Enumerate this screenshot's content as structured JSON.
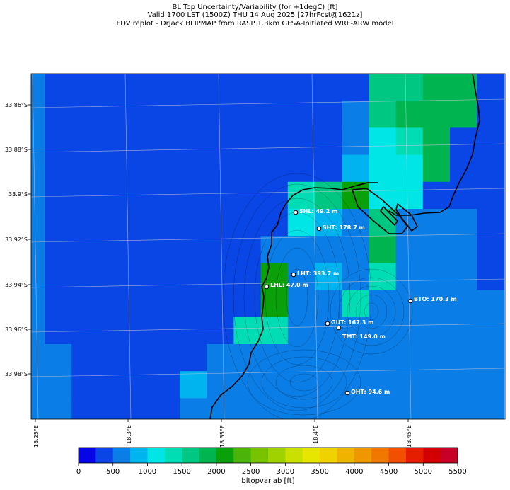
{
  "header": {
    "line1": "BL Top Uncertainty/Variability (for +1degC) [ft]",
    "line2": "Valid 1700 LST (1500Z) THU 14 Aug 2025 [27hrFcst@1621z]",
    "line3": "FDV replot - DrJack BLIPMAP from RASP 1.3km GFSA-Initiated WRF-ARW model"
  },
  "axes": {
    "lat_ticks": [
      "33.86°S",
      "33.88°S",
      "33.9°S",
      "33.92°S",
      "33.94°S",
      "33.96°S",
      "33.98°S"
    ],
    "lon_ticks": [
      "18.25°E",
      "18.3°E",
      "18.35°E",
      "18.4°E",
      "18.45°E"
    ]
  },
  "stations": [
    {
      "label": "SHL: 49.2 m"
    },
    {
      "label": "SHT: 178.7 m"
    },
    {
      "label": "LHT: 393.7 m"
    },
    {
      "label": "LHL: 47.0 m"
    },
    {
      "label": "BTO: 170.3 m"
    },
    {
      "label": "GUT: 167.3 m"
    },
    {
      "label": "TMT: 149.0 m"
    },
    {
      "label": "OHT: 94.6 m"
    }
  ],
  "colorbar": {
    "title": "bltopvariab [ft]",
    "ticks": [
      "0",
      "500",
      "1000",
      "1500",
      "2000",
      "2500",
      "3000",
      "3500",
      "4000",
      "4500",
      "5000",
      "5500"
    ],
    "colors": [
      "#0505e6",
      "#0a46e6",
      "#0a7de6",
      "#00b4f0",
      "#00e6e6",
      "#00dcb4",
      "#00c882",
      "#00b450",
      "#0aa00a",
      "#4bb40a",
      "#78c300",
      "#a0d200",
      "#c8e100",
      "#e6e600",
      "#f0d200",
      "#f0b400",
      "#f09600",
      "#f07800",
      "#f05000",
      "#e61e00",
      "#d20000",
      "#c80028"
    ]
  },
  "chart_data": {
    "type": "heatmap",
    "variable": "bltopvariab",
    "units": "ft",
    "lon_range": [
      18.24,
      18.52
    ],
    "lat_range": [
      -34.0,
      -33.85
    ],
    "grid_cols": 18,
    "grid_rows": 13,
    "bins_ft": 250,
    "grid_values_ft": [
      [
        500,
        250,
        250,
        250,
        250,
        250,
        250,
        250,
        250,
        250,
        250,
        250,
        250,
        1500,
        1500,
        1750,
        1750,
        250
      ],
      [
        500,
        250,
        250,
        250,
        250,
        250,
        250,
        250,
        250,
        250,
        250,
        250,
        500,
        1500,
        1750,
        1750,
        1750,
        250
      ],
      [
        500,
        250,
        250,
        250,
        250,
        250,
        250,
        250,
        250,
        250,
        250,
        250,
        500,
        1000,
        1250,
        1750,
        250,
        250
      ],
      [
        500,
        250,
        250,
        250,
        250,
        250,
        250,
        250,
        250,
        250,
        250,
        250,
        750,
        1000,
        1000,
        1750,
        250,
        250
      ],
      [
        500,
        250,
        250,
        250,
        250,
        250,
        250,
        250,
        250,
        250,
        1250,
        1500,
        2000,
        1000,
        1000,
        250,
        250,
        250
      ],
      [
        500,
        250,
        250,
        250,
        250,
        250,
        250,
        250,
        250,
        250,
        1000,
        750,
        500,
        1500,
        500,
        500,
        500,
        250
      ],
      [
        500,
        250,
        250,
        250,
        250,
        250,
        250,
        250,
        250,
        500,
        500,
        500,
        500,
        1750,
        500,
        500,
        500,
        250
      ],
      [
        500,
        250,
        250,
        250,
        250,
        250,
        250,
        250,
        250,
        2000,
        500,
        750,
        500,
        1250,
        500,
        500,
        500,
        250
      ],
      [
        500,
        250,
        250,
        250,
        250,
        250,
        250,
        250,
        250,
        2000,
        500,
        500,
        1250,
        500,
        500,
        500,
        500,
        500
      ],
      [
        500,
        250,
        250,
        250,
        250,
        250,
        250,
        250,
        1250,
        1250,
        500,
        500,
        500,
        500,
        500,
        500,
        500,
        500
      ],
      [
        500,
        500,
        250,
        250,
        250,
        250,
        250,
        500,
        500,
        500,
        500,
        500,
        500,
        500,
        500,
        500,
        500,
        500
      ],
      [
        500,
        500,
        250,
        250,
        250,
        250,
        750,
        500,
        500,
        500,
        500,
        500,
        500,
        500,
        500,
        500,
        500,
        500
      ],
      [
        500,
        500,
        250,
        250,
        250,
        250,
        500,
        500,
        500,
        500,
        500,
        500,
        500,
        500,
        500,
        500,
        500,
        500
      ]
    ],
    "stations": [
      {
        "id": "SHL",
        "elev_m": 49.2,
        "lon": 18.404,
        "lat": -33.908
      },
      {
        "id": "SHT",
        "elev_m": 178.7,
        "lon": 18.408,
        "lat": -33.915
      },
      {
        "id": "LHT",
        "elev_m": 393.7,
        "lon": 18.391,
        "lat": -33.935
      },
      {
        "id": "LHL",
        "elev_m": 47.0,
        "lon": 18.379,
        "lat": -33.94
      },
      {
        "id": "BTO",
        "elev_m": 170.3,
        "lon": 18.463,
        "lat": -33.947
      },
      {
        "id": "GUT",
        "elev_m": 167.3,
        "lon": 18.414,
        "lat": -33.957
      },
      {
        "id": "TMT",
        "elev_m": 149.0,
        "lon": 18.42,
        "lat": -33.959
      },
      {
        "id": "OHT",
        "elev_m": 94.6,
        "lon": 18.424,
        "lat": -33.988
      }
    ]
  }
}
